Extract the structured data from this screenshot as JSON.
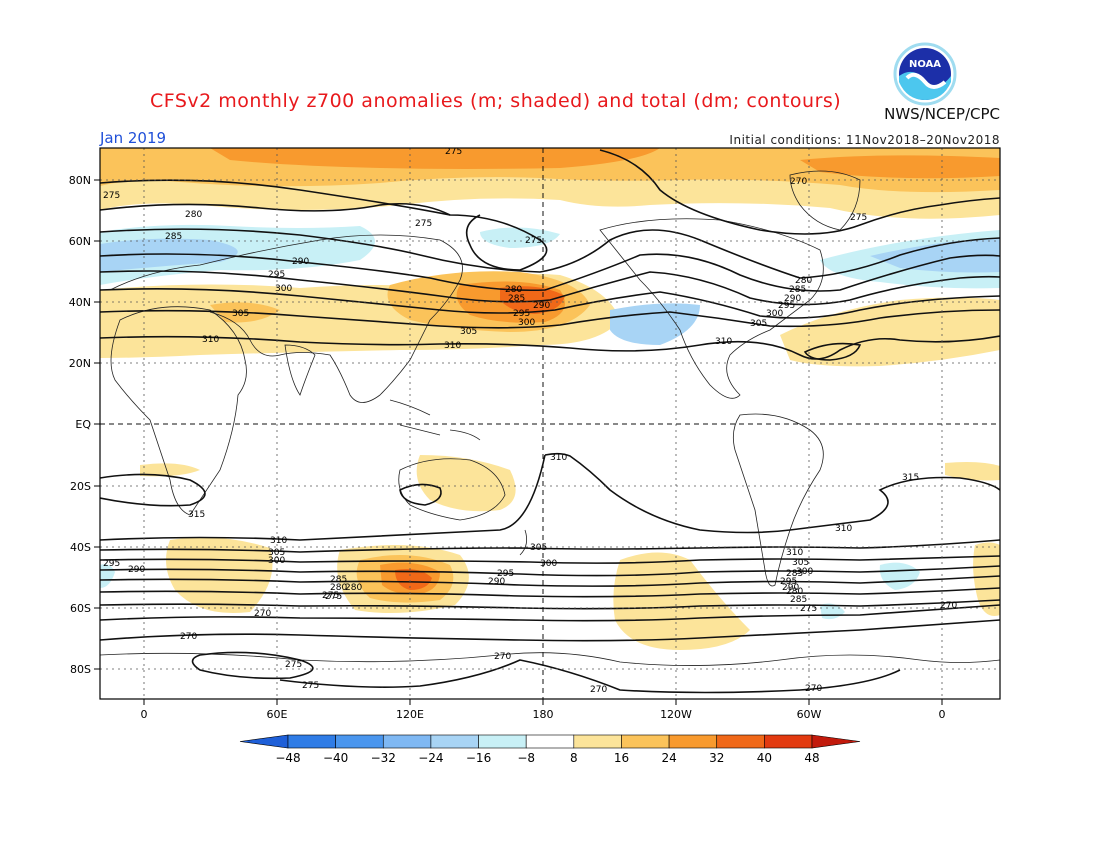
{
  "title": "CFSv2 monthly z700 anomalies (m; shaded) and total (dm; contours)",
  "month_label": "Jan 2019",
  "initial_conditions": "Initial conditions: 11Nov2018–20Nov2018",
  "agency": "NWS/NCEP/CPC",
  "logo_text": "NOAA",
  "lat_ticks": [
    "80N",
    "60N",
    "40N",
    "20N",
    "EQ",
    "20S",
    "40S",
    "60S",
    "80S"
  ],
  "lon_ticks": [
    "0",
    "60E",
    "120E",
    "180",
    "120W",
    "60W",
    "0"
  ],
  "colorbar": {
    "labels": [
      "-48",
      "-40",
      "-32",
      "-24",
      "-16",
      "-8",
      "8",
      "16",
      "24",
      "32",
      "40",
      "48"
    ],
    "colors": [
      "#1e5fd8",
      "#2f7ce6",
      "#4a96ee",
      "#7fb8f3",
      "#a8d4f5",
      "#c8f0f6",
      "#ffffff",
      "#fce49a",
      "#fbc35a",
      "#f89a2e",
      "#f06818",
      "#e23a10",
      "#c21a0c"
    ]
  },
  "contour_labels": {
    "north": [
      "275",
      "275",
      "280",
      "285",
      "290",
      "295",
      "300",
      "305",
      "310",
      "275",
      "280",
      "285",
      "290",
      "295",
      "300",
      "305",
      "310",
      "275",
      "270",
      "275",
      "280",
      "285",
      "290",
      "295",
      "300",
      "305",
      "310"
    ],
    "south": [
      "310",
      "315",
      "310",
      "305",
      "300",
      "295",
      "290",
      "285",
      "280",
      "275",
      "270",
      "270",
      "275",
      "275",
      "270",
      "310",
      "305",
      "300",
      "295",
      "290",
      "285",
      "280",
      "275",
      "270",
      "315",
      "310",
      "305",
      "300",
      "295",
      "290",
      "285",
      "280",
      "275",
      "270",
      "270"
    ]
  }
}
